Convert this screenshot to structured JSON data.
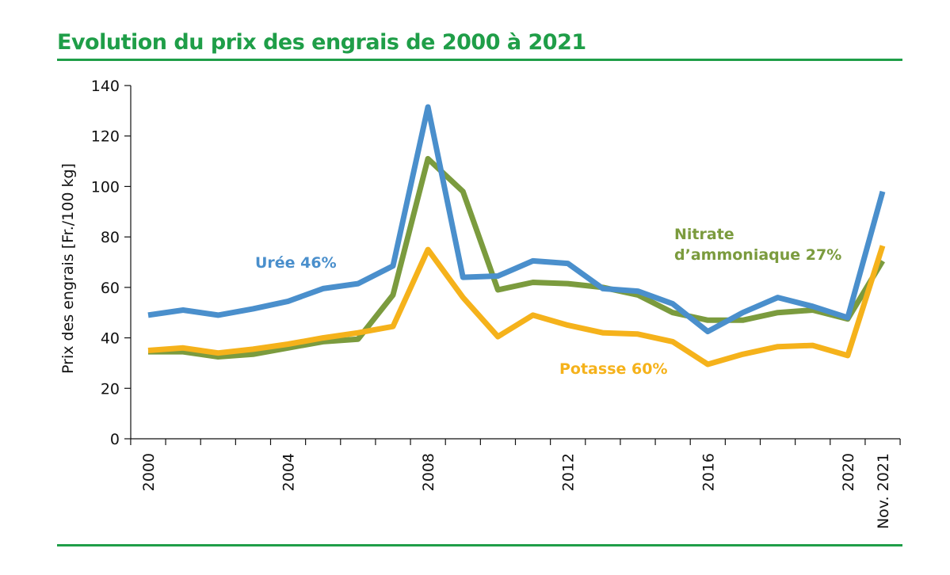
{
  "page": {
    "title": "Evolution du prix des engrais de 2000 à 2021"
  },
  "chart_data": {
    "type": "line",
    "title": "Evolution du prix des engrais de 2000 à 2021",
    "xlabel": "",
    "ylabel": "Prix des engrais [Fr./100 kg]",
    "ylim": [
      0,
      140
    ],
    "yticks": [
      0,
      20,
      40,
      60,
      80,
      100,
      120,
      140
    ],
    "x": [
      2000,
      2001,
      2002,
      2003,
      2004,
      2005,
      2006,
      2007,
      2008,
      2009,
      2010,
      2011,
      2012,
      2013,
      2014,
      2015,
      2016,
      2017,
      2018,
      2019,
      2020,
      2021
    ],
    "x_tick_labels": [
      "2000",
      "2004",
      "2008",
      "2012",
      "2016",
      "2020",
      "Nov. 2021"
    ],
    "grid": false,
    "legend": "inline labels",
    "series": [
      {
        "name": "Urée 46%",
        "color": "#4a8fcc",
        "values": [
          49,
          51,
          49,
          51.5,
          54.5,
          59.5,
          61.5,
          68.5,
          131.5,
          64,
          64.5,
          70.5,
          69.5,
          59.5,
          58.5,
          53.5,
          42.5,
          50,
          56,
          52.5,
          48,
          98
        ]
      },
      {
        "name": "Nitrate d’ammoniaque 27%",
        "label_lines": [
          "Nitrate",
          "d’ammoniaque 27%"
        ],
        "color": "#7b9b3e",
        "values": [
          34.5,
          34.5,
          32.5,
          33.5,
          36,
          38.5,
          39.5,
          57,
          111,
          98,
          59,
          62,
          61.5,
          60,
          57,
          50,
          47,
          47,
          50,
          51,
          47.5,
          70.5
        ]
      },
      {
        "name": "Potasse 60%",
        "color": "#f5b21b",
        "values": [
          35,
          36,
          34,
          35.5,
          37.5,
          40,
          42,
          44.5,
          75,
          56,
          40.5,
          49,
          45,
          42,
          41.5,
          38.5,
          29.5,
          33.5,
          36.5,
          37,
          33,
          76.5
        ]
      }
    ]
  }
}
